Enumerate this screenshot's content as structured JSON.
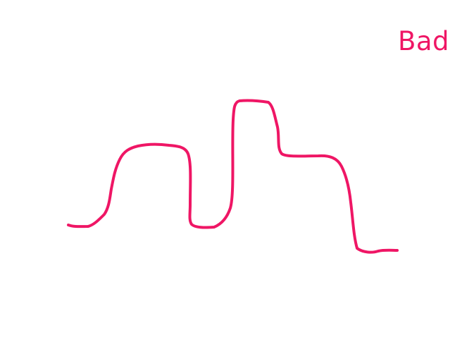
{
  "label": {
    "text": "Bad"
  },
  "colors": {
    "stroke": "#ef1665",
    "background": "#ffffff"
  }
}
